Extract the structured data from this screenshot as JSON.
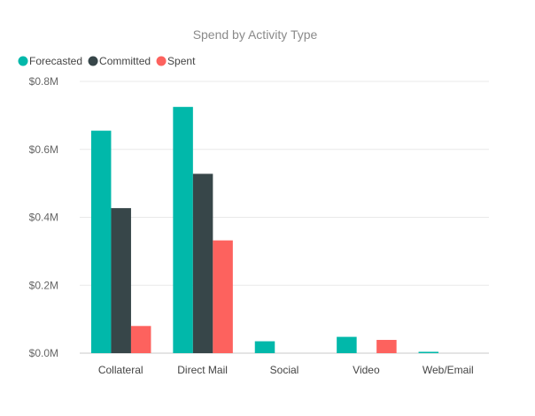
{
  "chart_data": {
    "type": "bar",
    "title": "Spend by Activity Type",
    "categories": [
      "Collateral",
      "Direct Mail",
      "Social",
      "Video",
      "Web/Email"
    ],
    "series": [
      {
        "name": "Forecasted",
        "color": "#01B8AA",
        "values": [
          0.655,
          0.725,
          0.035,
          0.048,
          0.004
        ]
      },
      {
        "name": "Committed",
        "color": "#374649",
        "values": [
          0.427,
          0.528,
          0,
          0,
          0
        ]
      },
      {
        "name": "Spent",
        "color": "#FD625E",
        "values": [
          0.08,
          0.332,
          0,
          0.039,
          0
        ]
      }
    ],
    "ylim": [
      0,
      0.8
    ],
    "yticks": [
      0,
      0.2,
      0.4,
      0.6,
      0.8
    ],
    "ytick_labels": [
      "$0.0M",
      "$0.2M",
      "$0.4M",
      "$0.6M",
      "$0.8M"
    ],
    "y_unit": "millions of dollars",
    "xlabel": "",
    "ylabel": "",
    "grid": true,
    "legend_position": "top-left"
  }
}
